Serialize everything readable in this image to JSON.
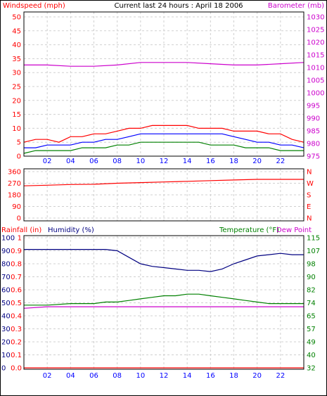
{
  "header": {
    "title": "Current last 24 hours : April 18 2006",
    "left_label": "Windspeed (mph)",
    "right_label": "Barometer (mb)"
  },
  "panel3_labels": {
    "rainfall": "Rainfall (in)",
    "humidity": "Humidity (%)",
    "temperature": "Temperature (°F)",
    "dewpoint": "Dew Point"
  },
  "colors": {
    "frame": "#000000",
    "grid": "#d0d0d0",
    "red": "#ff0000",
    "navy": "#000080",
    "blue": "#0000ff",
    "green": "#008000",
    "magenta": "#cc00cc"
  },
  "chart_data": [
    {
      "type": "line",
      "name": "wind-baro",
      "x_ticks": [
        "02",
        "04",
        "06",
        "08",
        "10",
        "12",
        "14",
        "16",
        "18",
        "20",
        "22"
      ],
      "x_range": [
        0,
        24
      ],
      "y_left_ticks": [
        "0",
        "5",
        "10",
        "15",
        "20",
        "25",
        "30",
        "35",
        "40",
        "45",
        "50"
      ],
      "y_left_range": [
        0,
        50
      ],
      "y_right_ticks": [
        "975",
        "980",
        "985",
        "990",
        "995",
        "1000",
        "1005",
        "1010",
        "1015",
        "1020",
        "1025",
        "1030"
      ],
      "y_right_range": [
        975,
        1030
      ],
      "series": [
        {
          "axis": "left",
          "color": "red",
          "x": [
            0,
            1,
            2,
            3,
            4,
            5,
            6,
            7,
            8,
            9,
            10,
            11,
            12,
            13,
            14,
            15,
            16,
            17,
            18,
            19,
            20,
            21,
            22,
            23,
            24
          ],
          "y": [
            5,
            6,
            6,
            5,
            7,
            7,
            8,
            8,
            9,
            10,
            10,
            11,
            11,
            11,
            11,
            10,
            10,
            10,
            9,
            9,
            9,
            8,
            8,
            6,
            5
          ]
        },
        {
          "axis": "left",
          "color": "blue",
          "x": [
            0,
            1,
            2,
            3,
            4,
            5,
            6,
            7,
            8,
            9,
            10,
            11,
            12,
            13,
            14,
            15,
            16,
            17,
            18,
            19,
            20,
            21,
            22,
            23,
            24
          ],
          "y": [
            3,
            3,
            4,
            4,
            4,
            5,
            5,
            6,
            6,
            7,
            8,
            8,
            8,
            8,
            8,
            8,
            8,
            8,
            7,
            6,
            5,
            5,
            4,
            4,
            3
          ]
        },
        {
          "axis": "left",
          "color": "green",
          "x": [
            0,
            1,
            2,
            3,
            4,
            5,
            6,
            7,
            8,
            9,
            10,
            11,
            12,
            13,
            14,
            15,
            16,
            17,
            18,
            19,
            20,
            21,
            22,
            23,
            24
          ],
          "y": [
            1,
            2,
            2,
            2,
            2,
            3,
            3,
            3,
            4,
            4,
            5,
            5,
            5,
            5,
            5,
            5,
            4,
            4,
            4,
            3,
            3,
            3,
            2,
            2,
            2
          ]
        },
        {
          "axis": "right",
          "color": "magenta",
          "x": [
            0,
            2,
            4,
            6,
            8,
            10,
            12,
            14,
            16,
            18,
            20,
            22,
            24
          ],
          "y": [
            1011,
            1011,
            1010.5,
            1010.5,
            1011,
            1012,
            1012,
            1012,
            1011.5,
            1011,
            1011,
            1011.5,
            1012
          ]
        }
      ]
    },
    {
      "type": "line",
      "name": "wind-direction",
      "x_range": [
        0,
        24
      ],
      "y_left_ticks": [
        "360",
        "270",
        "180",
        "90",
        "0"
      ],
      "y_left_range": [
        0,
        360
      ],
      "y_right_ticks": [
        "N",
        "W",
        "S",
        "E",
        "N"
      ],
      "series": [
        {
          "axis": "left",
          "color": "red",
          "x": [
            0,
            2,
            4,
            6,
            8,
            10,
            12,
            14,
            16,
            18,
            20,
            22,
            24
          ],
          "y": [
            250,
            255,
            260,
            262,
            270,
            275,
            280,
            285,
            290,
            295,
            300,
            300,
            300
          ]
        }
      ]
    },
    {
      "type": "line",
      "name": "rain-humidity-temp",
      "x_ticks": [
        "02",
        "04",
        "06",
        "08",
        "10",
        "12",
        "14",
        "16",
        "18",
        "20",
        "22"
      ],
      "x_range": [
        0,
        24
      ],
      "y_rain_ticks": [
        "0.0",
        "0.1",
        "0.2",
        "0.3",
        "0.4",
        "0.5",
        "0.6",
        "0.7",
        "0.8",
        "0.9",
        "1"
      ],
      "y_rain_range": [
        0,
        1
      ],
      "y_humidity_ticks": [
        "0",
        "10",
        "20",
        "30",
        "40",
        "50",
        "60",
        "70",
        "80",
        "90",
        "100"
      ],
      "y_humidity_range": [
        0,
        100
      ],
      "y_temp_ticks": [
        "32",
        "40",
        "49",
        "57",
        "65",
        "74",
        "82",
        "90",
        "98",
        "107",
        "115"
      ],
      "y_temp_range": [
        32,
        115
      ],
      "series": [
        {
          "axis": "humidity",
          "color": "navy",
          "x": [
            0,
            2,
            4,
            6,
            7,
            8,
            9,
            10,
            11,
            12,
            13,
            14,
            15,
            16,
            17,
            18,
            19,
            20,
            21,
            22,
            23,
            24
          ],
          "y": [
            91,
            91,
            91,
            91,
            91,
            90,
            85,
            80,
            78,
            77,
            76,
            75,
            75,
            74,
            76,
            80,
            83,
            86,
            87,
            88,
            87,
            87
          ]
        },
        {
          "axis": "temp",
          "color": "green",
          "x": [
            0,
            2,
            4,
            6,
            7,
            8,
            9,
            10,
            11,
            12,
            13,
            14,
            15,
            16,
            17,
            18,
            19,
            20,
            21,
            22,
            23,
            24
          ],
          "y": [
            72,
            72,
            73,
            73,
            74,
            74,
            75,
            76,
            77,
            78,
            78,
            79,
            79,
            78,
            77,
            76,
            75,
            74,
            73,
            73,
            73,
            73
          ]
        },
        {
          "axis": "temp",
          "color": "magenta",
          "x": [
            0,
            2,
            4,
            6,
            8,
            10,
            12,
            14,
            16,
            18,
            20,
            22,
            24
          ],
          "y": [
            70,
            71,
            71,
            71,
            71,
            71,
            71,
            71,
            71,
            71,
            71,
            71,
            71
          ]
        },
        {
          "axis": "rain",
          "color": "red",
          "x": [
            0,
            24
          ],
          "y": [
            0,
            0
          ]
        }
      ]
    }
  ]
}
